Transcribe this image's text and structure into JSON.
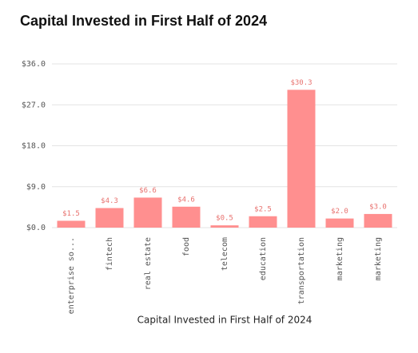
{
  "chart_data": {
    "type": "bar",
    "title": "Capital Invested in First Half of 2024",
    "x_label": "Capital Invested in First Half of 2024",
    "categories": [
      "enterprise so...",
      "fintech",
      "real estate",
      "food",
      "telecom",
      "education",
      "transportation",
      "marketing",
      "marketing"
    ],
    "values": [
      1.5,
      4.3,
      6.6,
      4.6,
      0.5,
      2.5,
      30.3,
      2.0,
      3.0
    ],
    "value_labels": [
      "$1.5",
      "$4.3",
      "$6.6",
      "$4.6",
      "$0.5",
      "$2.5",
      "$30.3",
      "$2.0",
      "$3.0"
    ],
    "color": "#ff8f8f",
    "label_color": "#e8726f",
    "ylim": [
      0,
      36
    ],
    "yticks": [
      {
        "value": 0,
        "label": "$0.0"
      },
      {
        "value": 9,
        "label": "$9.0"
      },
      {
        "value": 18,
        "label": "$18.0"
      },
      {
        "value": 27,
        "label": "$27.0"
      },
      {
        "value": 36,
        "label": "$36.0"
      }
    ],
    "grid": true
  }
}
